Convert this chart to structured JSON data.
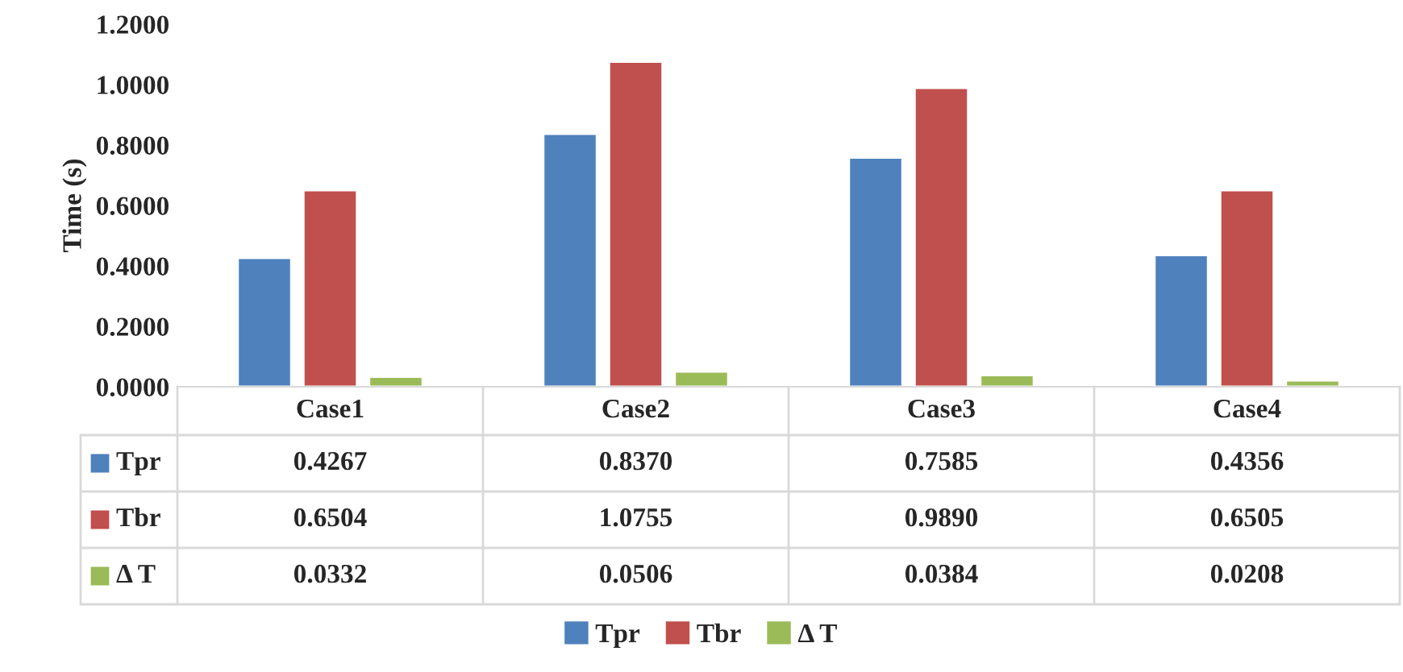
{
  "chart_data": {
    "type": "bar",
    "ylabel": "Time (s)",
    "categories": [
      "Case1",
      "Case2",
      "Case3",
      "Case4"
    ],
    "series": [
      {
        "name": "Tpr",
        "color": "#4f81bd",
        "values": [
          0.4267,
          0.837,
          0.7585,
          0.4356
        ],
        "value_labels": [
          "0.4267",
          "0.8370",
          "0.7585",
          "0.4356"
        ]
      },
      {
        "name": "Tbr",
        "color": "#c0504d",
        "values": [
          0.6504,
          1.0755,
          0.989,
          0.6505
        ],
        "value_labels": [
          "0.6504",
          "1.0755",
          "0.9890",
          "0.6505"
        ]
      },
      {
        "name": "Δ T",
        "color": "#9bbb59",
        "values": [
          0.0332,
          0.0506,
          0.0384,
          0.0208
        ],
        "value_labels": [
          "0.0332",
          "0.0506",
          "0.0384",
          "0.0208"
        ]
      }
    ],
    "ylim": [
      0,
      1.2
    ],
    "yticks": [
      {
        "value": 0,
        "label": "0.0000"
      },
      {
        "value": 0.2,
        "label": "0.2000"
      },
      {
        "value": 0.4,
        "label": "0.4000"
      },
      {
        "value": 0.6,
        "label": "0.6000"
      },
      {
        "value": 0.8,
        "label": "0.8000"
      },
      {
        "value": 1.0,
        "label": "1.0000"
      },
      {
        "value": 1.2,
        "label": "1.2000"
      }
    ],
    "grid": false,
    "legend": "bottom"
  }
}
